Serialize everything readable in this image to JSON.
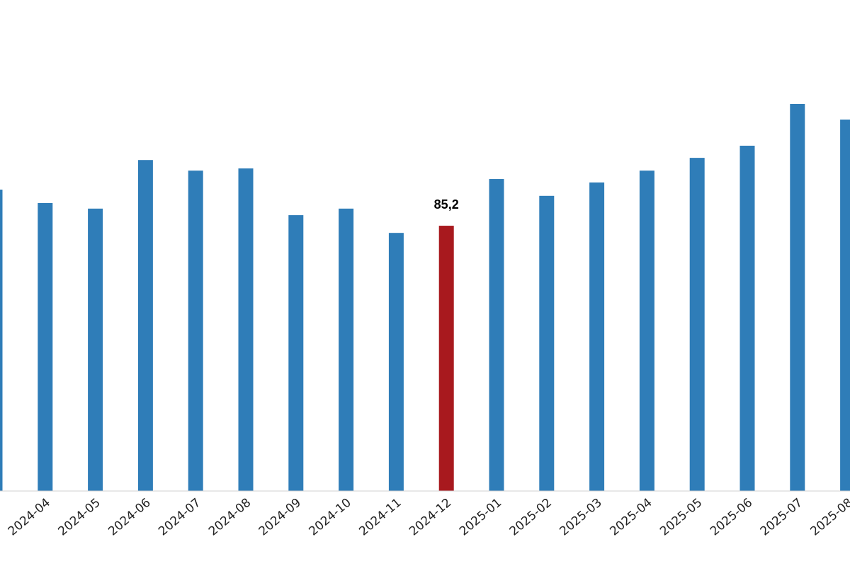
{
  "chart_data": {
    "type": "bar",
    "categories": [
      null,
      "2024-04",
      "2024-05",
      "2024-06",
      "2024-07",
      "2024-08",
      "2024-09",
      "2024-10",
      "2024-11",
      "2024-12",
      "2025-01",
      "2025-02",
      "2025-03",
      "2025-04",
      "2025-05",
      "2025-06",
      "2025-07",
      "2025-08"
    ],
    "values": [
      96.8,
      92.5,
      90.7,
      106.3,
      102.9,
      103.6,
      88.6,
      90.7,
      82.9,
      85.2,
      100.2,
      94.8,
      99.1,
      102.9,
      107.0,
      110.9,
      124.3,
      119.3
    ],
    "value_labels": [
      null,
      null,
      null,
      null,
      null,
      null,
      null,
      null,
      null,
      "85,2",
      null,
      null,
      null,
      null,
      null,
      null,
      null,
      null
    ],
    "colors": [
      "#2f7db8",
      "#2f7db8",
      "#2f7db8",
      "#2f7db8",
      "#2f7db8",
      "#2f7db8",
      "#2f7db8",
      "#2f7db8",
      "#2f7db8",
      "#a8191e",
      "#2f7db8",
      "#2f7db8",
      "#2f7db8",
      "#2f7db8",
      "#2f7db8",
      "#2f7db8",
      "#2f7db8",
      "#2f7db8"
    ],
    "ylim": [
      0,
      157.7
    ]
  }
}
